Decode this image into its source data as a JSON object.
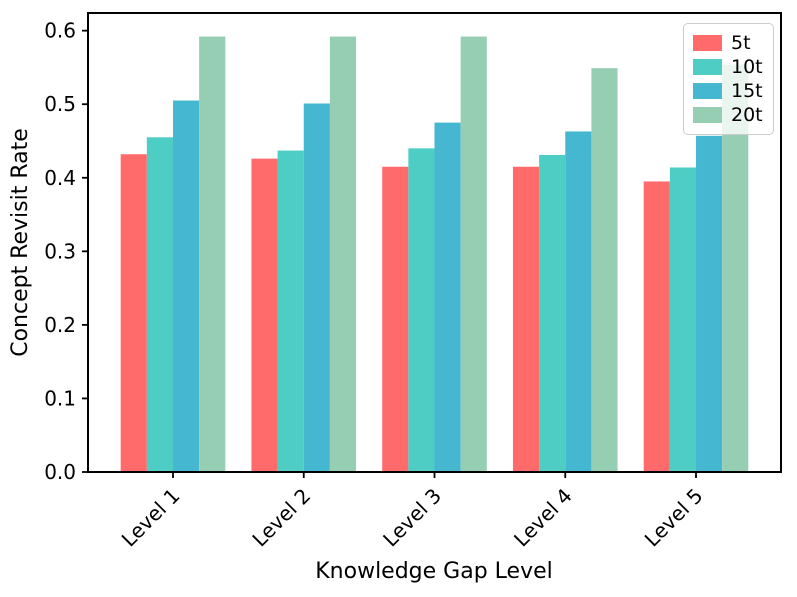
{
  "figure": {
    "background": "#ffffff",
    "border_color": "#000000"
  },
  "chart_data": {
    "type": "bar",
    "title": "",
    "xlabel": "Knowledge Gap Level",
    "ylabel": "Concept Revisit Rate",
    "categories": [
      "Level 1",
      "Level 2",
      "Level 3",
      "Level 4",
      "Level 5"
    ],
    "series": [
      {
        "name": "5t",
        "color": "#FF6B6B",
        "values": [
          0.432,
          0.426,
          0.415,
          0.415,
          0.395
        ]
      },
      {
        "name": "10t",
        "color": "#4ECDC4",
        "values": [
          0.455,
          0.437,
          0.44,
          0.431,
          0.414
        ]
      },
      {
        "name": "15t",
        "color": "#45B7D1",
        "values": [
          0.505,
          0.501,
          0.475,
          0.463,
          0.457
        ]
      },
      {
        "name": "20t",
        "color": "#96CEB4",
        "values": [
          0.592,
          0.592,
          0.592,
          0.549,
          0.554
        ]
      }
    ],
    "y_ticks": [
      "0.0",
      "0.1",
      "0.2",
      "0.3",
      "0.4",
      "0.5",
      "0.6"
    ],
    "y_tick_values": [
      0.0,
      0.1,
      0.2,
      0.3,
      0.4,
      0.5,
      0.6
    ],
    "ylim": [
      0,
      0.624
    ],
    "x_tick_rotation": 45,
    "grid": false,
    "legend": {
      "position": "upper right",
      "labels": [
        "5t",
        "10t",
        "15t",
        "20t"
      ]
    }
  }
}
